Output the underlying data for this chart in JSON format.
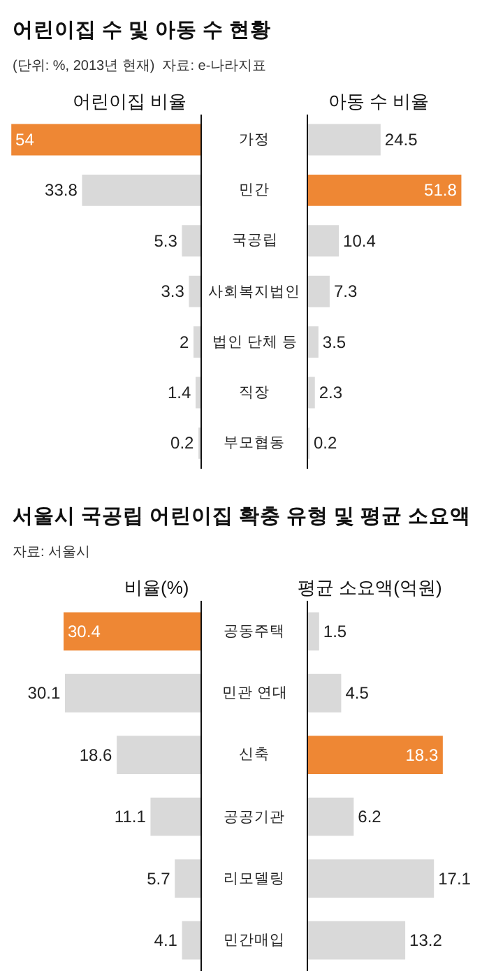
{
  "chart_data": [
    {
      "type": "bar",
      "orientation": "horizontal",
      "title": "어린이집 수 및 아동 수 현황",
      "subtitle": "(단위: %, 2013년 현재)  자료: e-나라지표",
      "xlabel": "어린이집 비율",
      "categories": [
        "가정",
        "민간",
        "국공립",
        "사회복지법인",
        "법인 단체 등",
        "직장",
        "부모협동"
      ],
      "values": [
        54,
        33.8,
        5.3,
        3.3,
        2,
        1.4,
        0.2
      ],
      "colors": [
        "#ee8734",
        "#d9d9d9",
        "#d9d9d9",
        "#d9d9d9",
        "#d9d9d9",
        "#d9d9d9",
        "#d9d9d9"
      ],
      "xlim": [
        54,
        0
      ],
      "data_labels": true,
      "tick_labels": "y"
    },
    {
      "type": "bar",
      "orientation": "horizontal",
      "xlabel": "아동 수 비율",
      "categories": [
        null,
        null,
        null,
        null,
        null,
        null,
        null
      ],
      "values": [
        24.5,
        51.8,
        10.4,
        7.3,
        3.5,
        2.3,
        0.2
      ],
      "colors": [
        "#d9d9d9",
        "#ee8734",
        "#d9d9d9",
        "#d9d9d9",
        "#d9d9d9",
        "#d9d9d9",
        "#d9d9d9"
      ],
      "data_labels": true,
      "tick_labels": false
    },
    {
      "type": "bar",
      "orientation": "horizontal",
      "title": "서울시 국공립 어린이집 확충 유형 및 평균 소요액",
      "subtitle": "자료: 서울시",
      "xlabel": "비율(%)",
      "categories": [
        "공동주택",
        "민관 연대",
        "신축",
        "공공기관",
        "리모델링",
        "민간매입"
      ],
      "values": [
        30.4,
        30.1,
        18.6,
        11.1,
        5.7,
        4.1
      ],
      "colors": [
        "#ee8734",
        "#d9d9d9",
        "#d9d9d9",
        "#d9d9d9",
        "#d9d9d9",
        "#d9d9d9"
      ],
      "xlim": [
        30.4,
        0
      ],
      "data_labels": true,
      "tick_labels": "y"
    },
    {
      "type": "bar",
      "orientation": "horizontal",
      "xlabel": "평균 소요액(억원)",
      "categories": [
        null,
        null,
        null,
        null,
        null,
        null
      ],
      "values": [
        1.5,
        4.5,
        18.3,
        6.2,
        17.1,
        13.2
      ],
      "colors": [
        "#d9d9d9",
        "#d9d9d9",
        "#ee8734",
        "#d9d9d9",
        "#d9d9d9",
        "#d9d9d9"
      ],
      "data_labels": true,
      "tick_labels": false
    }
  ]
}
